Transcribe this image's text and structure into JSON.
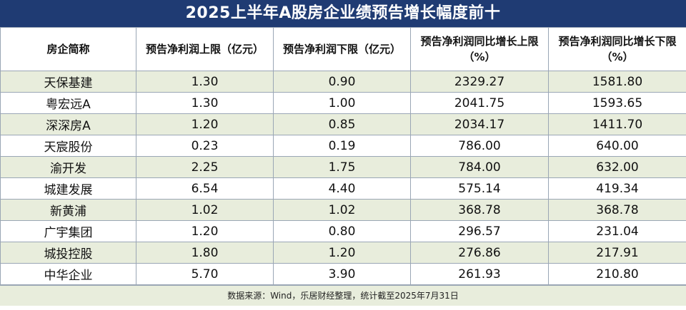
{
  "title": "2025上半年A股房企业绩预告增长幅度前十",
  "headers": [
    "房企简称",
    "预告净利润上限（亿元）",
    "预告净利润下限（亿元）",
    "预告净利润同比增长上限（%）",
    "预告净利润同比增长下限（%）"
  ],
  "rows": [
    [
      "天保基建",
      "1.30",
      "0.90",
      "2329.27",
      "1581.80"
    ],
    [
      "粤宏远A",
      "1.30",
      "1.00",
      "2041.75",
      "1593.65"
    ],
    [
      "深深房A",
      "1.20",
      "0.85",
      "2034.17",
      "1411.70"
    ],
    [
      "天宸股份",
      "0.23",
      "0.19",
      "786.00",
      "640.00"
    ],
    [
      "渝开发",
      "2.25",
      "1.75",
      "784.00",
      "632.00"
    ],
    [
      "城建发展",
      "6.54",
      "4.40",
      "575.14",
      "419.34"
    ],
    [
      "新黄浦",
      "1.02",
      "1.02",
      "368.78",
      "368.78"
    ],
    [
      "广宇集团",
      "1.20",
      "0.80",
      "296.57",
      "231.04"
    ],
    [
      "城投控股",
      "1.80",
      "1.20",
      "276.86",
      "217.91"
    ],
    [
      "中华企业",
      "5.70",
      "3.90",
      "261.93",
      "210.80"
    ]
  ],
  "source": "数据来源：Wind，乐居财经整理，统计截至2025年7月31日",
  "colors": {
    "title_bg": "#1f3b73",
    "band": "#e8eddc"
  }
}
